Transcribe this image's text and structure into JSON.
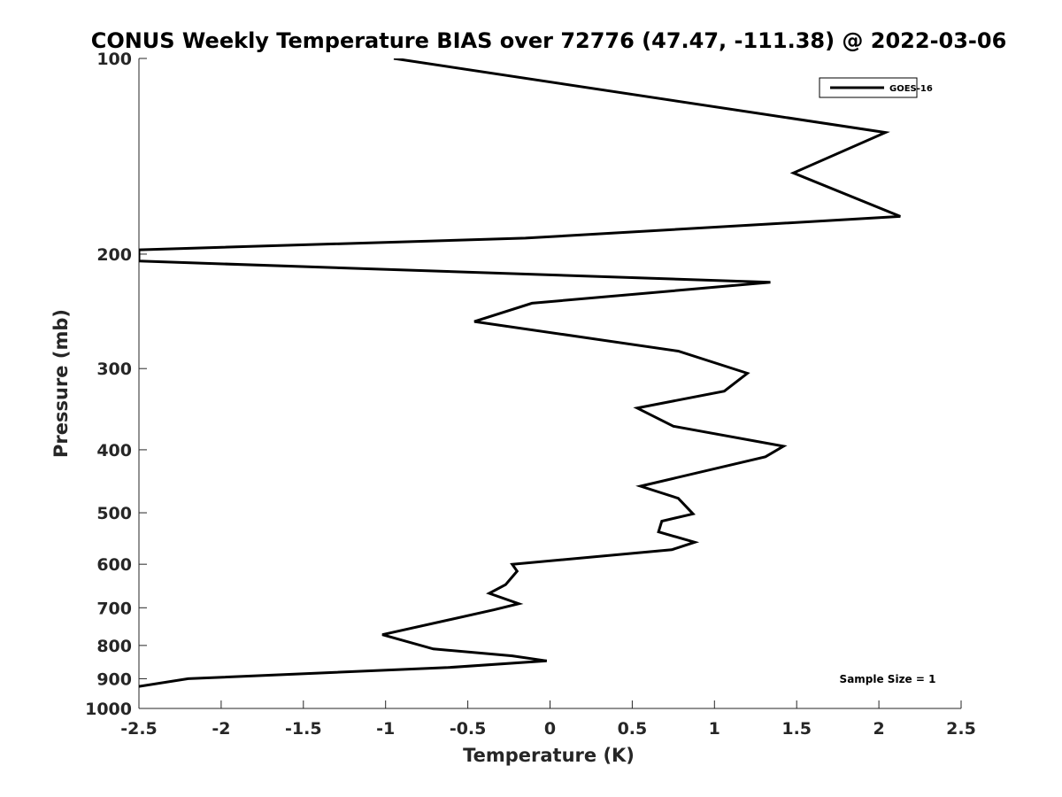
{
  "chart_data": {
    "type": "line",
    "title": "CONUS Weekly Temperature BIAS over 72776 (47.47, -111.38) @ 2022-03-06",
    "xlabel": "Temperature (K)",
    "ylabel": "Pressure (mb)",
    "xlim": [
      -2.5,
      2.5
    ],
    "ylim": [
      100,
      1000
    ],
    "y_scale": "log",
    "y_reversed": true,
    "x_ticks": [
      -2.5,
      -2,
      -1.5,
      -1,
      -0.5,
      0,
      0.5,
      1,
      1.5,
      2,
      2.5
    ],
    "x_tick_labels": [
      "-2.5",
      "-2",
      "-1.5",
      "-1",
      "-0.5",
      "0",
      "0.5",
      "1",
      "1.5",
      "2",
      "2.5"
    ],
    "y_ticks": [
      100,
      200,
      300,
      400,
      500,
      600,
      700,
      800,
      900,
      1000
    ],
    "y_tick_labels": [
      "100",
      "200",
      "300",
      "400",
      "500",
      "600",
      "700",
      "800",
      "900",
      "1000"
    ],
    "grid": false,
    "legend_position": "top-right",
    "series": [
      {
        "name": "GOES-16",
        "color": "#000000",
        "x": [
          -0.95,
          2.04,
          1.48,
          2.13,
          -0.15,
          -2.5,
          -2.5,
          1.34,
          -0.11,
          -0.46,
          0.78,
          1.2,
          1.06,
          0.53,
          0.75,
          1.42,
          1.31,
          1.05,
          0.55,
          0.78,
          0.87,
          0.68,
          0.66,
          0.88,
          0.74,
          -0.23,
          -0.2,
          -0.27,
          -0.37,
          -0.19,
          -0.34,
          -1.02,
          -0.71,
          -0.23,
          -0.02,
          -0.62,
          -2.2,
          -2.5
        ],
        "y": [
          100,
          130,
          150,
          175,
          189,
          197,
          205,
          221,
          238,
          254,
          282,
          305,
          325,
          345,
          368,
          395,
          410,
          425,
          455,
          475,
          502,
          515,
          535,
          555,
          570,
          600,
          615,
          645,
          665,
          690,
          705,
          770,
          810,
          830,
          845,
          865,
          900,
          925
        ]
      }
    ],
    "annotation": "Sample Size = 1"
  }
}
